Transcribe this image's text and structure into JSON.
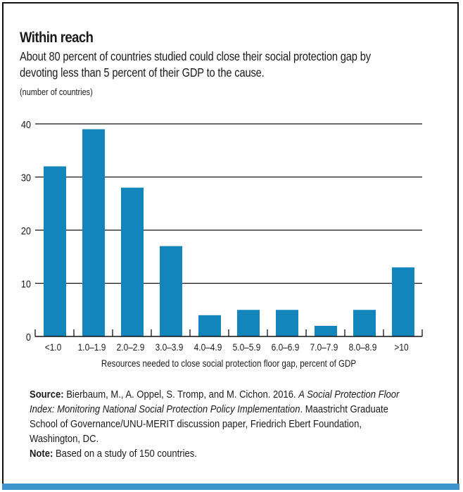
{
  "figure": {
    "title": "Within reach",
    "subtitle_line1": "About 80 percent of countries studied could close their social protection gap by",
    "subtitle_line2": "devoting less than 5 percent of their GDP to the cause.",
    "unit_label": "(number of countries)",
    "colors": {
      "bar": "#1185bc",
      "accent_bar": "#3d93cb",
      "frame": "#111111"
    }
  },
  "chart_data": {
    "type": "bar",
    "title": "Within reach",
    "xlabel": "Resources needed to close social protection floor gap, percent of GDP",
    "ylabel": "(number of countries)",
    "categories": [
      "<1.0",
      "1.0–1.9",
      "2.0–2.9",
      "3.0–3.9",
      "4.0–4.9",
      "5.0–5.9",
      "6.0–6.9",
      "7.0–7.9",
      "8.0–8.9",
      ">10"
    ],
    "values": [
      32,
      39,
      28,
      17,
      4,
      5,
      5,
      2,
      5,
      13
    ],
    "ylim": [
      0,
      40
    ],
    "yticks": [
      0,
      10,
      20,
      30,
      40
    ],
    "grid": true,
    "legend": "none"
  },
  "notes": {
    "source_label": "Source:",
    "source_text_pre": " Bierbaum, M., A. Oppel, S. Tromp, and M. Cichon. 2016. ",
    "source_title": "A Social Protection Floor Index: Monitoring National Social Protection Policy Implementation",
    "source_text_post": ". Maastricht Graduate School of Governance/UNU-MERIT discussion paper, Friedrich Ebert Foundation, Washington, DC.",
    "note_label": "Note:",
    "note_text": " Based on a study of 150 countries."
  }
}
